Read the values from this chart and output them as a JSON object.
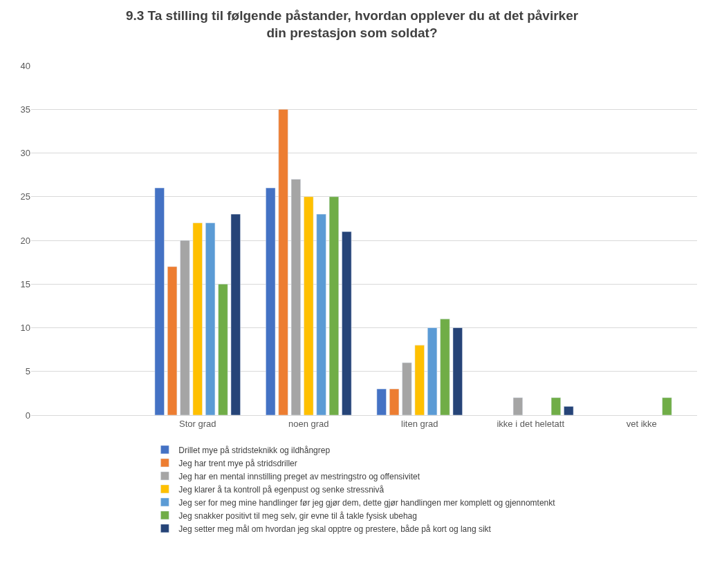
{
  "chart_data": {
    "type": "bar",
    "title": "9.3 Ta stilling til følgende påstander, hvordan opplever du at det påvirker din prestasjon som soldat?",
    "categories": [
      null,
      "Stor grad",
      "noen grad",
      "liten grad",
      "ikke i det heletatt",
      "vet ikke"
    ],
    "series": [
      {
        "name": "Drillet mye på stridsteknikk og ildhångrep",
        "color": "#4472c4",
        "values": [
          null,
          26,
          26,
          3,
          null,
          null
        ]
      },
      {
        "name": "Jeg har trent mye på stridsdriller",
        "color": "#ed7d31",
        "values": [
          null,
          17,
          35,
          3,
          null,
          null
        ]
      },
      {
        "name": "Jeg har en mental innstilling preget av mestringstro og offensivitet",
        "color": "#a5a5a5",
        "values": [
          null,
          20,
          27,
          6,
          2,
          null
        ]
      },
      {
        "name": "Jeg klarer å ta kontroll på egenpust og senke stressnivå",
        "color": "#ffc000",
        "values": [
          null,
          22,
          25,
          8,
          null,
          null
        ]
      },
      {
        "name": "Jeg ser for meg mine handlinger før jeg gjør dem, dette gjør handlingen mer komplett og gjennomtenkt",
        "color": "#5b9bd5",
        "values": [
          null,
          22,
          23,
          10,
          null,
          null
        ]
      },
      {
        "name": "Jeg snakker positivt til meg selv, gir evne til å takle fysisk ubehag",
        "color": "#70ad47",
        "values": [
          null,
          15,
          25,
          11,
          2,
          2
        ]
      },
      {
        "name": "Jeg setter meg mål om hvordan jeg skal opptre og prestere, både på kort og lang sikt",
        "color": "#264478",
        "values": [
          null,
          23,
          21,
          10,
          1,
          null
        ]
      }
    ],
    "ylim": [
      0,
      40
    ],
    "yticks": [
      0,
      5,
      10,
      15,
      20,
      25,
      30,
      35,
      40
    ],
    "grid": "y",
    "legend": "bottom"
  }
}
